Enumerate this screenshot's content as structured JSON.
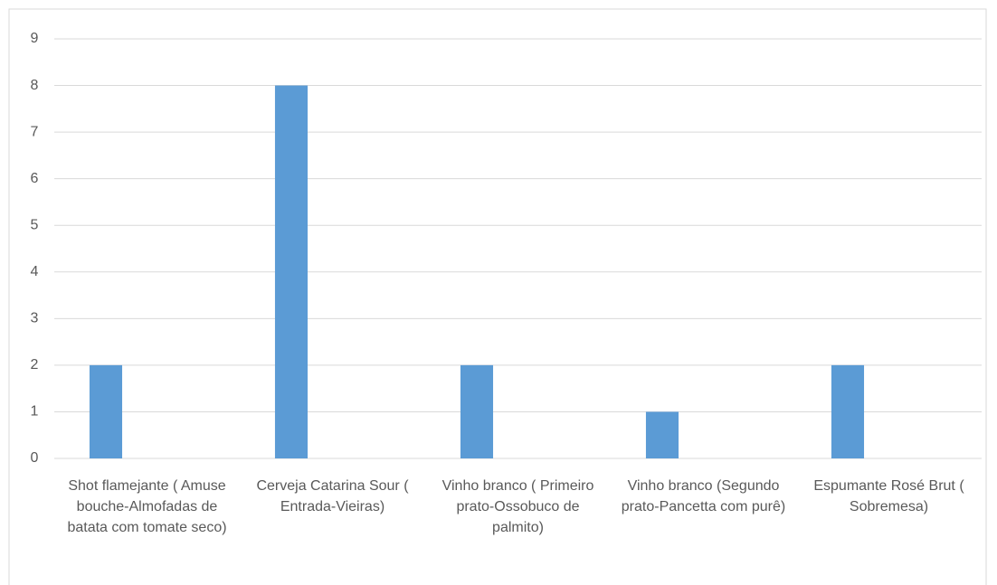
{
  "chart_data": {
    "type": "bar",
    "categories": [
      "Shot flamejante ( Amuse bouche-Almofadas de batata com tomate seco)",
      "Cerveja Catarina Sour ( Entrada-Vieiras)",
      "Vinho branco ( Primeiro prato-Ossobuco de palmito)",
      "Vinho branco (Segundo prato-Pancetta com purê)",
      "Espumante Rosé Brut ( Sobremesa)"
    ],
    "values": [
      2,
      8,
      2,
      1,
      2
    ],
    "color": "#5b9bd5",
    "ylim": [
      0,
      9
    ],
    "yticks": [
      0,
      1,
      2,
      3,
      4,
      5,
      6,
      7,
      8,
      9
    ],
    "grid": true
  }
}
